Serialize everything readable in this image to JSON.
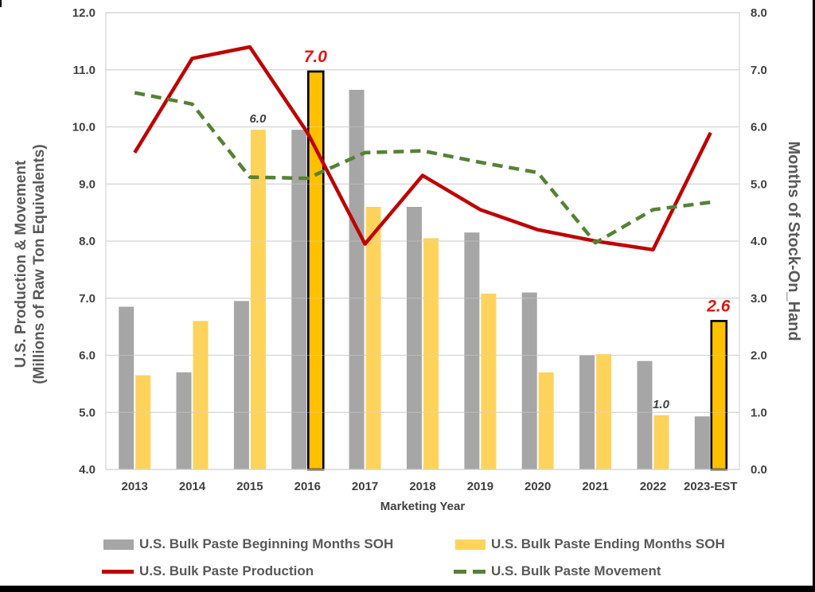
{
  "frame": {
    "background": "#FFFFFF",
    "border_color": "#000000"
  },
  "chart_data": {
    "type": "combo bar + line, dual axis",
    "categories": [
      "2013",
      "2014",
      "2015",
      "2016",
      "2017",
      "2018",
      "2019",
      "2020",
      "2021",
      "2022",
      "2023-EST"
    ],
    "x_axis": {
      "title": "Marketing Year"
    },
    "left_axis": {
      "title_lines": [
        "U.S. Production & Movement",
        "(Millions of Raw Ton Equivalents)"
      ],
      "min": 4.0,
      "max": 12.0,
      "step": 1.0,
      "tick_labels": [
        "12.0",
        "11.0",
        "10.0",
        "9.0",
        "8.0",
        "7.0",
        "6.0",
        "5.0",
        "4.0"
      ]
    },
    "right_axis": {
      "title": "Months of Stock-On_Hand",
      "min": 0.0,
      "max": 8.0,
      "step": 1.0,
      "tick_labels": [
        "8.0",
        "7.0",
        "6.0",
        "5.0",
        "4.0",
        "3.0",
        "2.0",
        "1.0",
        "0.0"
      ]
    },
    "grid": "horizontal gridlines on",
    "legend_position": "bottom, two columns",
    "palette": {
      "grid": "#D4D4D4",
      "tick_text": "#404040",
      "axis_title_text": "#595959",
      "legend_text": "#595959",
      "annotation_dark": "#3F3F3F",
      "annotation_red": "#E21414"
    },
    "series": [
      {
        "id": "beginning",
        "name": "U.S. Bulk Paste Beginning Months SOH",
        "type": "bar",
        "axis": "right",
        "color": "#A6A6A6",
        "values": [
          2.85,
          1.7,
          2.95,
          5.95,
          6.65,
          4.6,
          4.15,
          3.1,
          2.0,
          1.9,
          0.93
        ]
      },
      {
        "id": "ending",
        "name": "U.S. Bulk Paste Ending Months SOH",
        "type": "bar",
        "axis": "right",
        "color": "#FDD35C",
        "highlight": {
          "indexes": [
            3,
            10
          ],
          "color": "#FFC000",
          "outline": "#000000"
        },
        "values": [
          1.65,
          2.6,
          5.95,
          6.97,
          4.6,
          4.05,
          3.08,
          1.7,
          2.02,
          0.95,
          2.6
        ]
      },
      {
        "id": "production",
        "name": "U.S. Bulk Paste Production",
        "type": "line",
        "axis": "left",
        "color": "#C00000",
        "dash": "solid",
        "values": [
          9.55,
          11.2,
          11.4,
          9.9,
          7.95,
          9.15,
          8.55,
          8.2,
          8.0,
          7.85,
          9.9
        ]
      },
      {
        "id": "movement",
        "name": "U.S. Bulk Paste Movement",
        "type": "line",
        "axis": "left",
        "color": "#548235",
        "dash": "dashed",
        "values": [
          10.6,
          10.4,
          9.12,
          9.1,
          9.55,
          9.58,
          9.38,
          9.2,
          7.97,
          8.55,
          8.68
        ]
      }
    ],
    "annotations": [
      {
        "category": "2015",
        "series": "ending",
        "text": "6.0",
        "style": "dark-small"
      },
      {
        "category": "2016",
        "series": "ending",
        "text": "7.0",
        "style": "red-large"
      },
      {
        "category": "2022",
        "series": "ending",
        "text": "1.0",
        "style": "dark-small"
      },
      {
        "category": "2023-EST",
        "series": "ending",
        "text": "2.6",
        "style": "red-large"
      }
    ]
  }
}
